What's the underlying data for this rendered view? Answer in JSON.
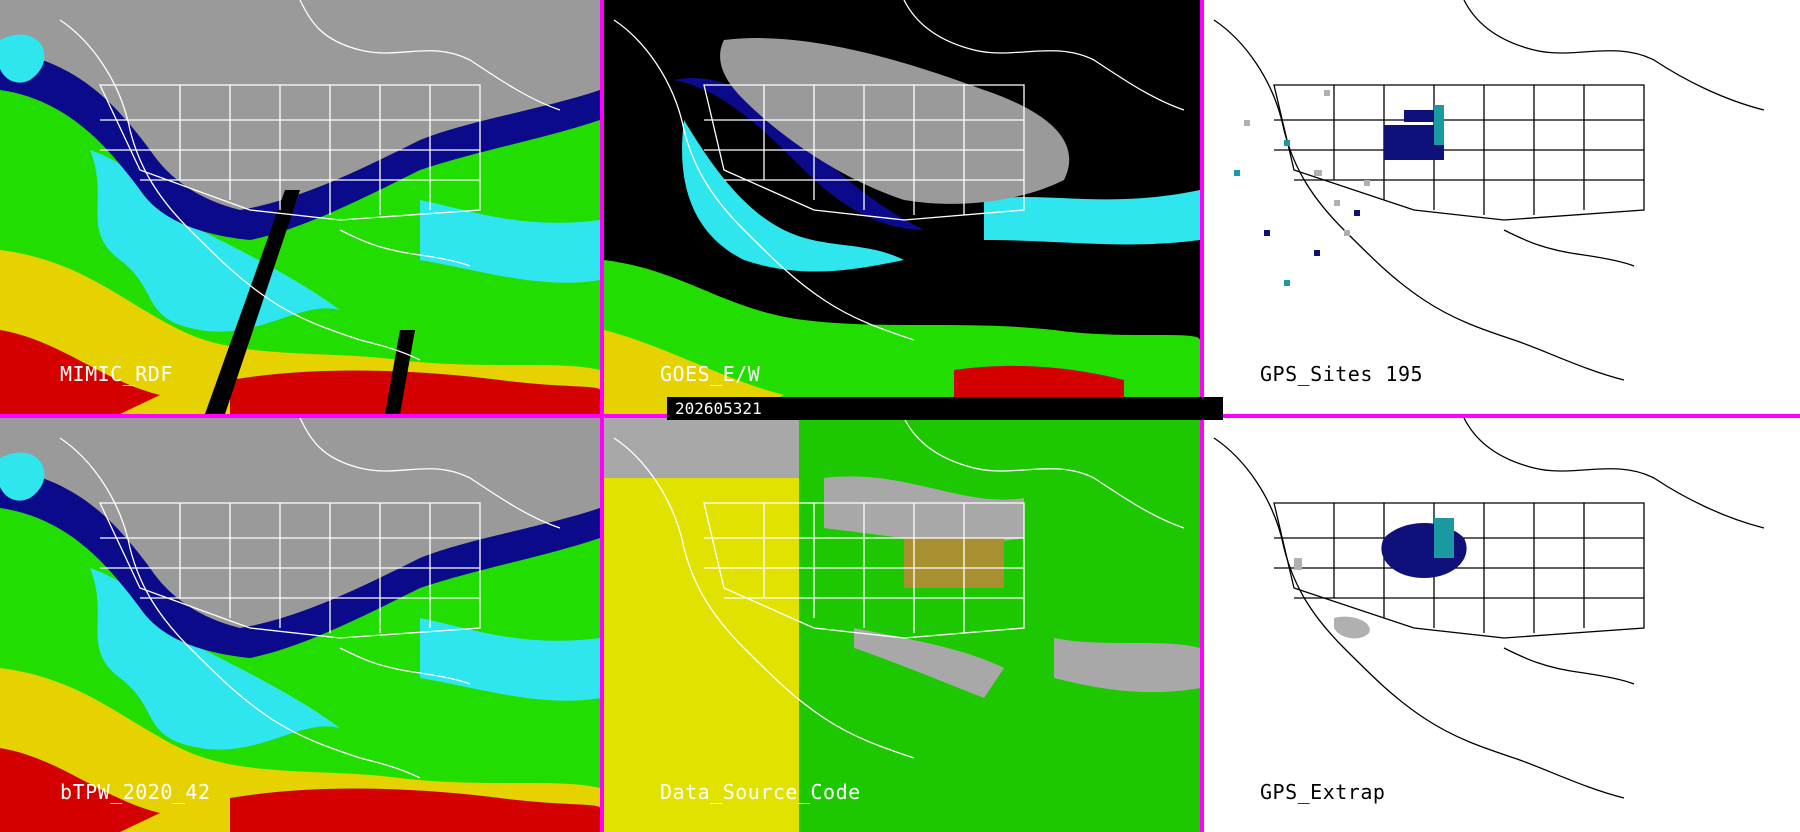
{
  "timestamp": "202605321",
  "gps_count": "195",
  "colors": {
    "separator": "#ff00ff",
    "tpw_red": "#d40000",
    "tpw_yellow": "#e6d200",
    "tpw_green": "#22dd00",
    "tpw_cyan": "#2fe6ee",
    "tpw_blue": "#0a0a8a",
    "tpw_gray": "#9a9a9a",
    "source_yellow": "#e2e200",
    "source_green": "#1ec800",
    "source_gray": "#a8a8a8",
    "source_olive": "#a89030",
    "gps_navy": "#10107a",
    "gps_teal": "#1a9aa0",
    "gps_gray": "#b0b0b0"
  },
  "panels": [
    {
      "id": "mimic",
      "label": "MIMIC_RDF"
    },
    {
      "id": "goes",
      "label": "GOES_E/W"
    },
    {
      "id": "gps-sites",
      "label": "GPS_Sites"
    },
    {
      "id": "btpw",
      "label": "bTPW_2020_42"
    },
    {
      "id": "source",
      "label": "Data_Source_Code"
    },
    {
      "id": "gps-extrap",
      "label": "GPS_Extrap"
    }
  ]
}
